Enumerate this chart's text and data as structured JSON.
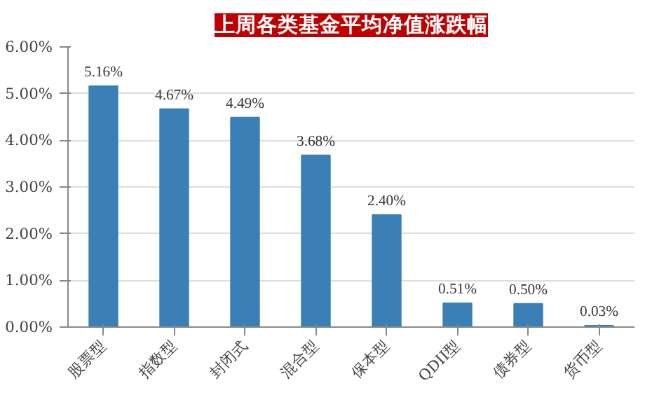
{
  "chart_data": {
    "type": "bar",
    "title": "上周各类基金平均净值涨跌幅",
    "categories": [
      "股票型",
      "指数型",
      "封闭式",
      "混合型",
      "保本型",
      "QDII型",
      "债券型",
      "货币型"
    ],
    "values": [
      5.16,
      4.67,
      4.49,
      3.68,
      2.4,
      0.51,
      0.5,
      0.03
    ],
    "color": "#3a7fb5",
    "value_labels": [
      "5.16%",
      "4.67%",
      "4.49%",
      "3.68%",
      "2.40%",
      "0.51%",
      "0.50%",
      "0.03%"
    ],
    "ylim": [
      0,
      6
    ],
    "yticks": [
      {
        "value": 0,
        "label": "0.00%"
      },
      {
        "value": 1,
        "label": "1.00%"
      },
      {
        "value": 2,
        "label": "2.00%"
      },
      {
        "value": 3,
        "label": "3.00%"
      },
      {
        "value": 4,
        "label": "4.00%"
      },
      {
        "value": 5,
        "label": "5.00%"
      },
      {
        "value": 6,
        "label": "6.00%"
      }
    ],
    "grid": "y"
  }
}
